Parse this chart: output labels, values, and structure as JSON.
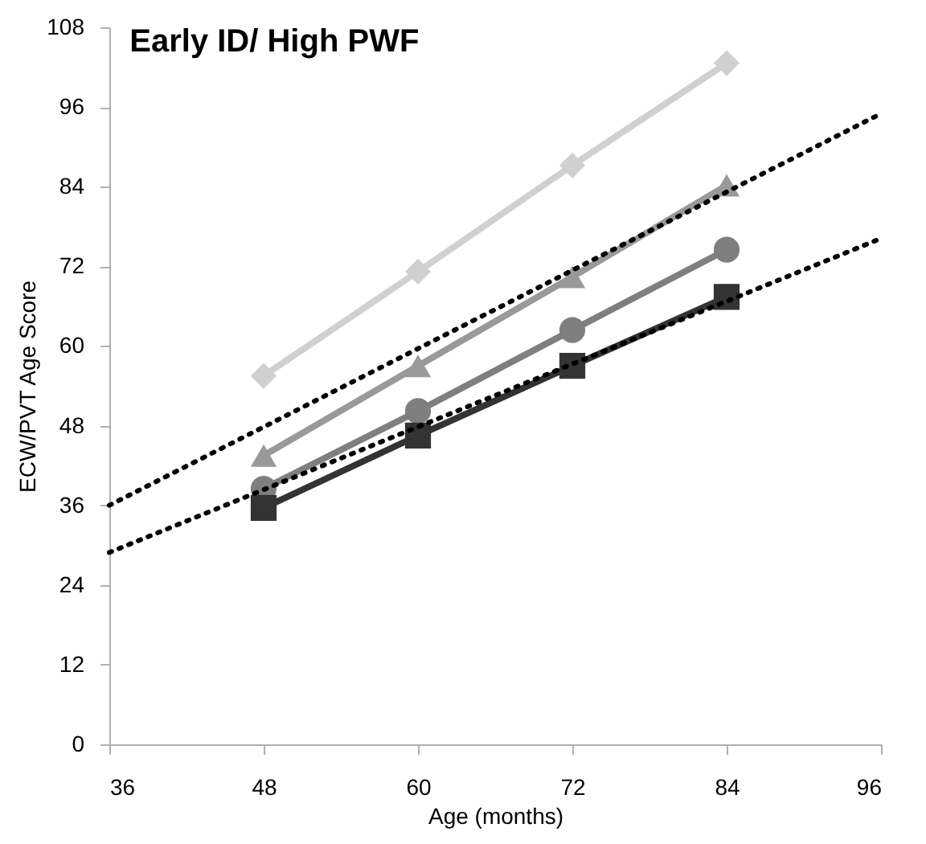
{
  "chart_data": {
    "type": "line",
    "title": "Early ID/ High PWF",
    "xlabel": "Age (months)",
    "ylabel": "ECW/PVT Age Score",
    "xlim": [
      36,
      96
    ],
    "xticks": [
      36,
      48,
      60,
      72,
      84,
      96
    ],
    "ylim": [
      0,
      108
    ],
    "yticks": [
      0,
      12,
      24,
      36,
      48,
      60,
      72,
      84,
      96,
      108
    ],
    "grid": false,
    "line_style": "solid",
    "series": [
      {
        "color": "#d0d0d0",
        "marker": "diamond",
        "x": [
          48,
          60,
          72,
          84
        ],
        "values": [
          55.5,
          71.2,
          87.2,
          102.6
        ]
      },
      {
        "color": "#999999",
        "marker": "triangle",
        "x": [
          48,
          60,
          72,
          84
        ],
        "values": [
          43.5,
          57,
          70.4,
          84.2
        ]
      },
      {
        "color": "#7f7f7f",
        "marker": "circle",
        "x": [
          48,
          60,
          72,
          84
        ],
        "values": [
          38.5,
          50.2,
          62.4,
          74.5
        ]
      },
      {
        "color": "#333333",
        "marker": "square",
        "x": [
          48,
          60,
          72,
          84
        ],
        "values": [
          35.6,
          46.5,
          57,
          67.4
        ]
      },
      {
        "color": "#000000",
        "marker": "none",
        "line_style": "dotted",
        "x": [
          36,
          96
        ],
        "values": [
          36,
          95
        ]
      },
      {
        "color": "#000000",
        "marker": "none",
        "line_style": "dotted",
        "x": [
          36,
          96
        ],
        "values": [
          28.9,
          76.2
        ]
      }
    ]
  }
}
